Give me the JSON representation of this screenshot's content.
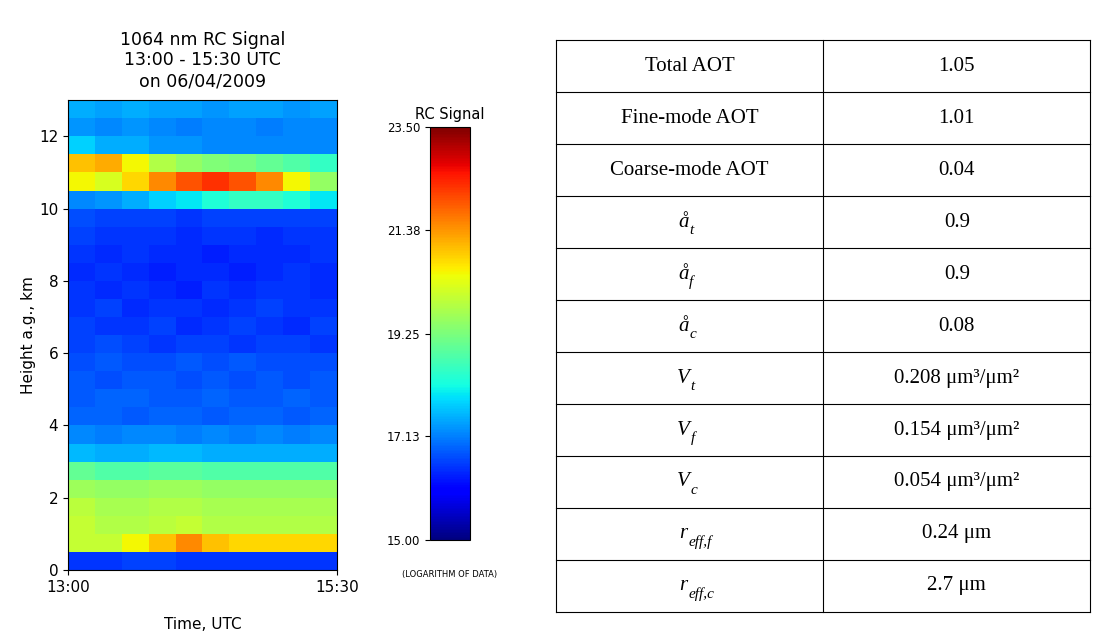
{
  "chart_data": {
    "type": "heatmap",
    "title": "1064 nm RC Signal\n13:00 - 15:30 UTC\non 06/04/2009",
    "x_label": "Time, UTC",
    "y_label": "Height a.g., km",
    "xlim": [
      13,
      15.5
    ],
    "xticks": [
      {
        "value": 13,
        "label": "13:00"
      },
      {
        "value": 15.5,
        "label": "15:30"
      }
    ],
    "ylim": [
      0,
      13
    ],
    "yticks": [
      0,
      2,
      4,
      6,
      8,
      10,
      12
    ],
    "x_edges": [
      13.0,
      13.25,
      13.5,
      13.75,
      14.0,
      14.25,
      14.5,
      14.75,
      15.0,
      15.25,
      15.5
    ],
    "y_edges": [
      0,
      0.5,
      1,
      1.5,
      2,
      2.5,
      3,
      3.5,
      4,
      4.5,
      5,
      5.5,
      6,
      6.5,
      7,
      7.5,
      8,
      8.5,
      9,
      9.5,
      10,
      10.5,
      11,
      11.5,
      12,
      12.5,
      13
    ],
    "cells": [
      [
        16.5,
        16.5,
        16.6,
        16.6,
        16.5,
        16.5,
        16.5,
        16.5,
        16.5,
        16.5
      ],
      [
        20.0,
        20.0,
        20.5,
        21.0,
        21.5,
        21.0,
        20.8,
        20.8,
        20.8,
        20.8
      ],
      [
        20.0,
        19.8,
        19.8,
        19.9,
        20.0,
        19.8,
        19.8,
        19.8,
        19.8,
        19.8
      ],
      [
        19.9,
        19.7,
        19.7,
        19.8,
        19.8,
        19.7,
        19.7,
        19.7,
        19.7,
        19.7
      ],
      [
        19.6,
        19.5,
        19.5,
        19.6,
        19.6,
        19.5,
        19.5,
        19.5,
        19.5,
        19.5
      ],
      [
        19.0,
        18.8,
        18.8,
        18.9,
        18.9,
        18.8,
        18.8,
        18.8,
        18.8,
        18.8
      ],
      [
        17.6,
        17.5,
        17.5,
        17.6,
        17.6,
        17.5,
        17.5,
        17.5,
        17.5,
        17.5
      ],
      [
        17.2,
        17.1,
        17.2,
        17.2,
        17.1,
        17.2,
        17.1,
        17.2,
        17.1,
        17.2
      ],
      [
        16.9,
        16.9,
        16.8,
        16.9,
        16.9,
        16.8,
        16.9,
        16.9,
        16.8,
        16.9
      ],
      [
        16.8,
        16.9,
        16.9,
        16.8,
        16.8,
        16.9,
        16.8,
        16.8,
        16.9,
        16.8
      ],
      [
        16.8,
        16.7,
        16.8,
        16.8,
        16.7,
        16.8,
        16.7,
        16.8,
        16.7,
        16.8
      ],
      [
        16.7,
        16.8,
        16.7,
        16.7,
        16.8,
        16.7,
        16.8,
        16.7,
        16.7,
        16.7
      ],
      [
        16.6,
        16.7,
        16.6,
        16.5,
        16.6,
        16.6,
        16.5,
        16.6,
        16.6,
        16.5
      ],
      [
        16.6,
        16.5,
        16.5,
        16.6,
        16.4,
        16.5,
        16.6,
        16.5,
        16.4,
        16.6
      ],
      [
        16.5,
        16.6,
        16.4,
        16.5,
        16.5,
        16.4,
        16.5,
        16.6,
        16.5,
        16.5
      ],
      [
        16.5,
        16.4,
        16.5,
        16.4,
        16.3,
        16.5,
        16.4,
        16.5,
        16.5,
        16.4
      ],
      [
        16.4,
        16.5,
        16.4,
        16.3,
        16.4,
        16.4,
        16.3,
        16.4,
        16.5,
        16.4
      ],
      [
        16.5,
        16.4,
        16.5,
        16.4,
        16.4,
        16.3,
        16.4,
        16.4,
        16.4,
        16.5
      ],
      [
        16.6,
        16.5,
        16.5,
        16.5,
        16.4,
        16.5,
        16.5,
        16.4,
        16.5,
        16.5
      ],
      [
        16.7,
        16.6,
        16.6,
        16.6,
        16.5,
        16.6,
        16.6,
        16.6,
        16.6,
        16.6
      ],
      [
        17.2,
        17.3,
        17.5,
        17.8,
        18.0,
        18.3,
        18.5,
        18.5,
        18.3,
        18.0
      ],
      [
        20.5,
        20.2,
        20.8,
        21.5,
        22.0,
        22.3,
        22.0,
        21.5,
        20.5,
        19.5
      ],
      [
        21.0,
        21.2,
        20.5,
        19.8,
        19.5,
        19.3,
        19.2,
        19.0,
        18.8,
        18.5
      ],
      [
        17.8,
        17.5,
        17.5,
        17.3,
        17.3,
        17.2,
        17.2,
        17.2,
        17.2,
        17.2
      ],
      [
        17.3,
        17.2,
        17.3,
        17.2,
        17.1,
        17.2,
        17.2,
        17.1,
        17.2,
        17.2
      ],
      [
        17.5,
        17.4,
        17.5,
        17.4,
        17.4,
        17.3,
        17.4,
        17.4,
        17.3,
        17.4
      ]
    ],
    "colorbar": {
      "title": "RC Signal",
      "note": "(LOGARITHM OF DATA)",
      "range": [
        15.0,
        23.5
      ],
      "ticks": [
        {
          "value": 15.0,
          "label": "15.00"
        },
        {
          "value": 17.13,
          "label": "17.13"
        },
        {
          "value": 19.25,
          "label": "19.25"
        },
        {
          "value": 21.38,
          "label": "21.38"
        },
        {
          "value": 23.5,
          "label": "23.50"
        }
      ]
    }
  },
  "table": {
    "rows": [
      {
        "label": "Total AOT",
        "value": "1.05"
      },
      {
        "label": "Fine-mode AOT",
        "value": "1.01"
      },
      {
        "label": "Coarse-mode AOT",
        "value": "0.04"
      },
      {
        "label": "å",
        "subscript": "t",
        "value": "0.9"
      },
      {
        "label": "å",
        "subscript": "f",
        "value": "0.9"
      },
      {
        "label": "å",
        "subscript": "c",
        "value": "0.08"
      },
      {
        "label": "V",
        "subscript": "t",
        "value": "0.208 μm³/μm²"
      },
      {
        "label": "V",
        "subscript": "f",
        "value": "0.154 μm³/μm²"
      },
      {
        "label": "V",
        "subscript": "c",
        "value": "0.054 μm³/μm²"
      },
      {
        "label": "r",
        "subscript": "eff,f",
        "value": "0.24 μm"
      },
      {
        "label": "r",
        "subscript": "eff,c",
        "value": "2.7 μm"
      }
    ]
  }
}
